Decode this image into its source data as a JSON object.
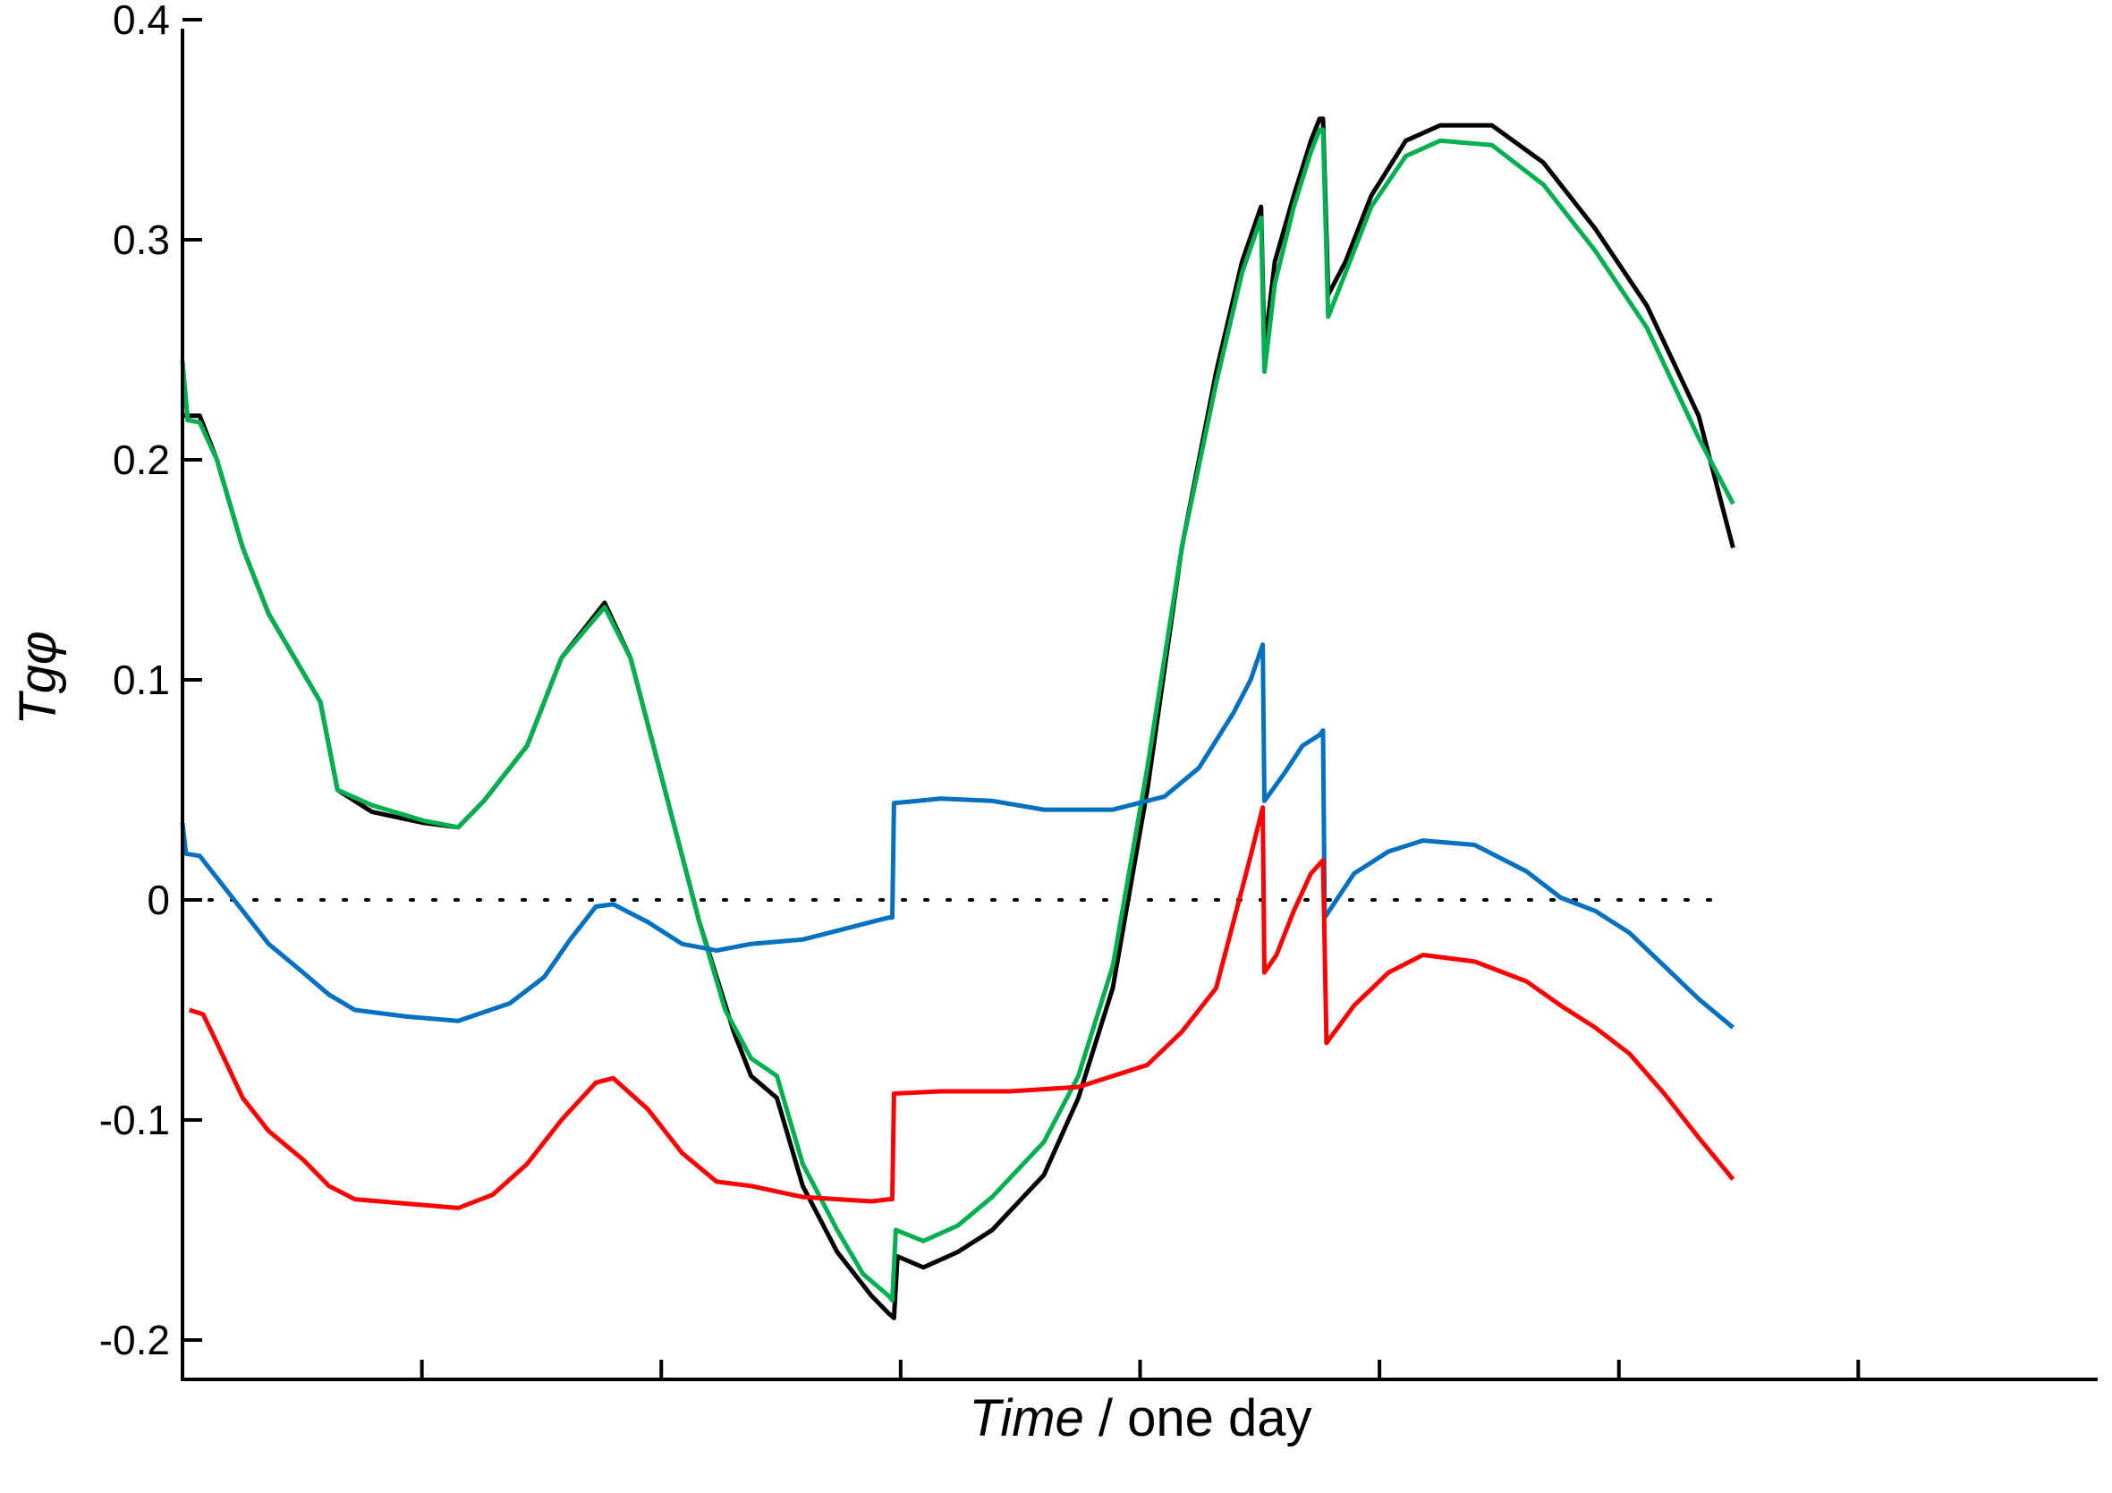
{
  "chart_data": {
    "type": "line",
    "title": "",
    "xlabel_italic": "Time",
    "xlabel_rest": " / one day",
    "ylabel": "Tgφ",
    "ylim": [
      -0.22,
      0.4
    ],
    "xlim": [
      0,
      1
    ],
    "yticks": [
      -0.2,
      -0.1,
      0,
      0.1,
      0.2,
      0.3,
      0.4
    ],
    "ytick_labels": [
      "-0.2",
      "-0.1",
      "0",
      "0.1",
      "0.2",
      "0.3",
      "0.4"
    ],
    "xticks": [
      0.125,
      0.25,
      0.375,
      0.5,
      0.625,
      0.75,
      0.875
    ],
    "grid": false,
    "reference_line": {
      "y": 0,
      "style": "dotted",
      "x_range": [
        0,
        0.9
      ]
    },
    "series": [
      {
        "color": "#000000",
        "points": [
          [
            0.0,
            0.22
          ],
          [
            0.01,
            0.22
          ],
          [
            0.02,
            0.2
          ],
          [
            0.035,
            0.16
          ],
          [
            0.05,
            0.13
          ],
          [
            0.065,
            0.11
          ],
          [
            0.08,
            0.09
          ],
          [
            0.09,
            0.05
          ],
          [
            0.11,
            0.04
          ],
          [
            0.14,
            0.035
          ],
          [
            0.16,
            0.033
          ],
          [
            0.175,
            0.045
          ],
          [
            0.2,
            0.07
          ],
          [
            0.22,
            0.11
          ],
          [
            0.245,
            0.135
          ],
          [
            0.26,
            0.11
          ],
          [
            0.28,
            0.05
          ],
          [
            0.3,
            -0.01
          ],
          [
            0.32,
            -0.06
          ],
          [
            0.33,
            -0.08
          ],
          [
            0.345,
            -0.09
          ],
          [
            0.36,
            -0.13
          ],
          [
            0.38,
            -0.16
          ],
          [
            0.4,
            -0.18
          ],
          [
            0.41,
            -0.188
          ],
          [
            0.413,
            -0.19
          ],
          [
            0.415,
            -0.162
          ],
          [
            0.43,
            -0.167
          ],
          [
            0.45,
            -0.16
          ],
          [
            0.47,
            -0.15
          ],
          [
            0.5,
            -0.125
          ],
          [
            0.52,
            -0.09
          ],
          [
            0.54,
            -0.04
          ],
          [
            0.56,
            0.05
          ],
          [
            0.58,
            0.16
          ],
          [
            0.6,
            0.24
          ],
          [
            0.615,
            0.29
          ],
          [
            0.626,
            0.315
          ],
          [
            0.628,
            0.25
          ],
          [
            0.634,
            0.29
          ],
          [
            0.645,
            0.32
          ],
          [
            0.655,
            0.345
          ],
          [
            0.66,
            0.355
          ],
          [
            0.662,
            0.355
          ],
          [
            0.665,
            0.275
          ],
          [
            0.675,
            0.29
          ],
          [
            0.69,
            0.32
          ],
          [
            0.71,
            0.345
          ],
          [
            0.73,
            0.352
          ],
          [
            0.76,
            0.352
          ],
          [
            0.79,
            0.335
          ],
          [
            0.82,
            0.305
          ],
          [
            0.85,
            0.27
          ],
          [
            0.88,
            0.22
          ],
          [
            0.9,
            0.16
          ]
        ]
      },
      {
        "color": "#00b050",
        "points": [
          [
            0.0,
            0.245
          ],
          [
            0.003,
            0.218
          ],
          [
            0.01,
            0.217
          ],
          [
            0.02,
            0.2
          ],
          [
            0.035,
            0.16
          ],
          [
            0.05,
            0.13
          ],
          [
            0.065,
            0.11
          ],
          [
            0.08,
            0.09
          ],
          [
            0.09,
            0.05
          ],
          [
            0.11,
            0.043
          ],
          [
            0.14,
            0.036
          ],
          [
            0.16,
            0.033
          ],
          [
            0.175,
            0.045
          ],
          [
            0.2,
            0.07
          ],
          [
            0.22,
            0.11
          ],
          [
            0.245,
            0.133
          ],
          [
            0.26,
            0.11
          ],
          [
            0.28,
            0.05
          ],
          [
            0.3,
            -0.01
          ],
          [
            0.315,
            -0.05
          ],
          [
            0.33,
            -0.072
          ],
          [
            0.345,
            -0.08
          ],
          [
            0.36,
            -0.12
          ],
          [
            0.38,
            -0.15
          ],
          [
            0.395,
            -0.17
          ],
          [
            0.41,
            -0.18
          ],
          [
            0.412,
            -0.182
          ],
          [
            0.414,
            -0.15
          ],
          [
            0.43,
            -0.155
          ],
          [
            0.45,
            -0.148
          ],
          [
            0.47,
            -0.135
          ],
          [
            0.5,
            -0.11
          ],
          [
            0.52,
            -0.08
          ],
          [
            0.54,
            -0.03
          ],
          [
            0.56,
            0.06
          ],
          [
            0.58,
            0.16
          ],
          [
            0.6,
            0.235
          ],
          [
            0.615,
            0.285
          ],
          [
            0.626,
            0.31
          ],
          [
            0.628,
            0.24
          ],
          [
            0.634,
            0.28
          ],
          [
            0.645,
            0.315
          ],
          [
            0.655,
            0.34
          ],
          [
            0.66,
            0.35
          ],
          [
            0.662,
            0.35
          ],
          [
            0.665,
            0.265
          ],
          [
            0.675,
            0.285
          ],
          [
            0.69,
            0.315
          ],
          [
            0.71,
            0.338
          ],
          [
            0.73,
            0.345
          ],
          [
            0.76,
            0.343
          ],
          [
            0.79,
            0.325
          ],
          [
            0.82,
            0.295
          ],
          [
            0.85,
            0.26
          ],
          [
            0.88,
            0.21
          ],
          [
            0.9,
            0.18
          ]
        ]
      },
      {
        "color": "#0070c0",
        "points": [
          [
            0.0,
            0.035
          ],
          [
            0.002,
            0.021
          ],
          [
            0.01,
            0.02
          ],
          [
            0.03,
            0.0
          ],
          [
            0.05,
            -0.02
          ],
          [
            0.07,
            -0.033
          ],
          [
            0.085,
            -0.043
          ],
          [
            0.1,
            -0.05
          ],
          [
            0.13,
            -0.053
          ],
          [
            0.16,
            -0.055
          ],
          [
            0.19,
            -0.047
          ],
          [
            0.21,
            -0.035
          ],
          [
            0.225,
            -0.018
          ],
          [
            0.24,
            -0.003
          ],
          [
            0.25,
            -0.002
          ],
          [
            0.27,
            -0.01
          ],
          [
            0.29,
            -0.02
          ],
          [
            0.31,
            -0.023
          ],
          [
            0.33,
            -0.02
          ],
          [
            0.36,
            -0.018
          ],
          [
            0.38,
            -0.014
          ],
          [
            0.4,
            -0.01
          ],
          [
            0.41,
            -0.008
          ],
          [
            0.412,
            -0.008
          ],
          [
            0.413,
            0.044
          ],
          [
            0.44,
            0.046
          ],
          [
            0.47,
            0.045
          ],
          [
            0.5,
            0.041
          ],
          [
            0.54,
            0.041
          ],
          [
            0.57,
            0.047
          ],
          [
            0.59,
            0.06
          ],
          [
            0.61,
            0.085
          ],
          [
            0.62,
            0.1
          ],
          [
            0.627,
            0.116
          ],
          [
            0.628,
            0.045
          ],
          [
            0.64,
            0.058
          ],
          [
            0.65,
            0.07
          ],
          [
            0.66,
            0.075
          ],
          [
            0.662,
            0.077
          ],
          [
            0.663,
            -0.008
          ],
          [
            0.68,
            0.012
          ],
          [
            0.7,
            0.022
          ],
          [
            0.72,
            0.027
          ],
          [
            0.75,
            0.025
          ],
          [
            0.78,
            0.013
          ],
          [
            0.8,
            0.001
          ],
          [
            0.82,
            -0.005
          ],
          [
            0.84,
            -0.015
          ],
          [
            0.86,
            -0.03
          ],
          [
            0.88,
            -0.045
          ],
          [
            0.9,
            -0.058
          ]
        ]
      },
      {
        "color": "#ff0000",
        "points": [
          [
            0.004,
            -0.05
          ],
          [
            0.012,
            -0.052
          ],
          [
            0.02,
            -0.065
          ],
          [
            0.035,
            -0.09
          ],
          [
            0.05,
            -0.105
          ],
          [
            0.07,
            -0.118
          ],
          [
            0.085,
            -0.13
          ],
          [
            0.1,
            -0.136
          ],
          [
            0.13,
            -0.138
          ],
          [
            0.16,
            -0.14
          ],
          [
            0.18,
            -0.134
          ],
          [
            0.2,
            -0.12
          ],
          [
            0.22,
            -0.1
          ],
          [
            0.24,
            -0.083
          ],
          [
            0.25,
            -0.081
          ],
          [
            0.27,
            -0.095
          ],
          [
            0.29,
            -0.115
          ],
          [
            0.31,
            -0.128
          ],
          [
            0.33,
            -0.13
          ],
          [
            0.36,
            -0.135
          ],
          [
            0.4,
            -0.137
          ],
          [
            0.41,
            -0.136
          ],
          [
            0.412,
            -0.136
          ],
          [
            0.413,
            -0.088
          ],
          [
            0.44,
            -0.087
          ],
          [
            0.48,
            -0.087
          ],
          [
            0.52,
            -0.085
          ],
          [
            0.56,
            -0.075
          ],
          [
            0.58,
            -0.06
          ],
          [
            0.6,
            -0.04
          ],
          [
            0.61,
            -0.01
          ],
          [
            0.62,
            0.02
          ],
          [
            0.627,
            0.042
          ],
          [
            0.628,
            -0.033
          ],
          [
            0.635,
            -0.025
          ],
          [
            0.645,
            -0.005
          ],
          [
            0.655,
            0.012
          ],
          [
            0.662,
            0.018
          ],
          [
            0.664,
            -0.065
          ],
          [
            0.68,
            -0.048
          ],
          [
            0.7,
            -0.033
          ],
          [
            0.72,
            -0.025
          ],
          [
            0.75,
            -0.028
          ],
          [
            0.78,
            -0.037
          ],
          [
            0.8,
            -0.048
          ],
          [
            0.82,
            -0.058
          ],
          [
            0.84,
            -0.07
          ],
          [
            0.86,
            -0.088
          ],
          [
            0.88,
            -0.108
          ],
          [
            0.9,
            -0.127
          ]
        ]
      }
    ]
  }
}
